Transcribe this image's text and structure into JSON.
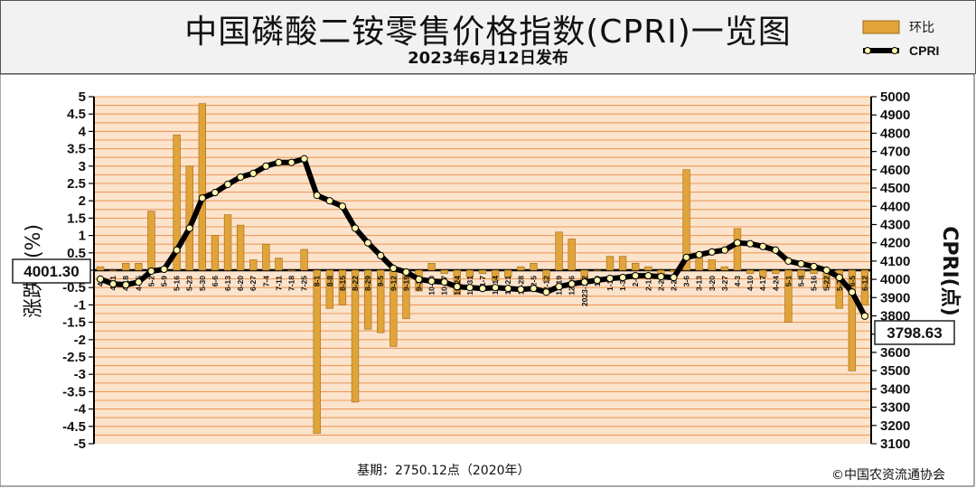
{
  "header": {
    "title": "中国磷酸二铵零售价格指数(CPRI)一览图",
    "subtitle": "2023年6月12日发布"
  },
  "footer": {
    "base": "基期：2750.12点（2020年）",
    "copyright": "©中国农资流通协会"
  },
  "colors": {
    "bar": "#e0a43a",
    "bar_edge": "#a06a1a",
    "band": "#f7cfa9",
    "band_line": "#ef9a58",
    "line": "#000000",
    "marker": "#fff6b0"
  },
  "chart_data": {
    "type": "bar+line",
    "legend": [
      "环比",
      "CPRI"
    ],
    "legend_position": "top-right",
    "ylabel_left": "涨跌幅(%)",
    "ylabel_right": "CPRI(点)",
    "ylim_left": [
      -5,
      5
    ],
    "ylim_right": [
      3100,
      5000
    ],
    "yticks_left": [
      "5",
      "4.5",
      "4",
      "3.5",
      "3",
      "2.5",
      "2",
      "1.5",
      "1",
      "0.5",
      "0",
      "-0.5",
      "-1",
      "-1.5",
      "-2",
      "-2.5",
      "-3",
      "-3.5",
      "-4",
      "-4.5",
      "-5"
    ],
    "yticks_right": [
      "5000",
      "4900",
      "4800",
      "4700",
      "4600",
      "4500",
      "4400",
      "4300",
      "4200",
      "4100",
      "4000",
      "3900",
      "3800",
      "3700",
      "3600",
      "3500",
      "3400",
      "3300",
      "3200",
      "3100"
    ],
    "callout_start": "4001.30",
    "callout_end": "3798.63",
    "year_marker": "2023-1-2",
    "x_labels": [
      "4-4",
      "4-11",
      "4-18",
      "4-25",
      "5-2",
      "5-9",
      "5-16",
      "5-23",
      "5-30",
      "6-6",
      "6-13",
      "6-20",
      "6-27",
      "7-4",
      "7-11",
      "7-18",
      "7-25",
      "8-1",
      "8-8",
      "8-15",
      "8-22",
      "8-29",
      "9-5",
      "9-12",
      "9-19",
      "9-26",
      "10-10",
      "10-17",
      "10-24",
      "10-31",
      "11-7",
      "11-14",
      "11-21",
      "11-28",
      "12-5",
      "12-12",
      "12-19",
      "12-26",
      "1-2",
      "1-9",
      "1-16",
      "1-30",
      "2-6",
      "2-13",
      "2-20",
      "2-27",
      "3-6",
      "3-13",
      "3-20",
      "3-27",
      "4-3",
      "4-10",
      "4-17",
      "4-24",
      "5-1",
      "5-8",
      "5-16",
      "5-22",
      "5-29",
      "6-5",
      "6-12"
    ],
    "x_label_step": 1,
    "x_label_shown": [
      "4-4",
      "4-11",
      "4-18",
      "4-25",
      "5-2",
      "5-9",
      "5-16",
      "5-23",
      "5-30",
      "6-6",
      "6-13",
      "6-20",
      "6-27",
      "7-4",
      "7-11",
      "7-18",
      "7-25",
      "8-1",
      "8-8",
      "8-15",
      "8-22",
      "8-29",
      "9-5",
      "9-12",
      "9-19",
      "9-26",
      "10-10",
      "10-17",
      "10-24",
      "10-31",
      "11-7",
      "11-14",
      "11-21",
      "11-28",
      "12-5",
      "12-12",
      "12-19",
      "12-26",
      "2023-1-2",
      "1-9",
      "1-16",
      "1-30",
      "2-6",
      "2-13",
      "2-20",
      "2-27",
      "3-6",
      "3-13",
      "3-20",
      "3-27",
      "4-3",
      "4-10",
      "4-17",
      "4-24",
      "5-1",
      "5-8",
      "5-16",
      "5-22",
      "5-29",
      "6-5",
      "6-12"
    ],
    "series": [
      {
        "name": "环比",
        "type": "bar",
        "values": [
          0.1,
          0.0,
          0.2,
          0.2,
          1.7,
          0.0,
          3.9,
          3.0,
          4.8,
          1.0,
          1.6,
          1.3,
          0.3,
          0.75,
          0.35,
          0.0,
          0.6,
          -4.7,
          -1.1,
          -1.0,
          -3.8,
          -1.7,
          -1.8,
          -2.2,
          -1.4,
          -0.6,
          0.2,
          -0.1,
          -0.7,
          -0.2,
          -0.1,
          -0.3,
          -0.2,
          0.1,
          0.2,
          -0.3,
          1.1,
          0.9,
          -0.3,
          0.0,
          0.4,
          0.4,
          0.2,
          0.1,
          -0.1,
          -0.05,
          2.9,
          0.4,
          0.3,
          0.1,
          1.2,
          -0.1,
          -0.2,
          -0.1,
          -1.5,
          -0.2,
          -0.1,
          -0.5,
          -1.1,
          -2.9,
          -1.0
        ]
      },
      {
        "name": "CPRI",
        "type": "line",
        "values": [
          4001.3,
          3975,
          3970,
          3985,
          4045,
          4055,
          4160,
          4280,
          4445,
          4475,
          4520,
          4560,
          4580,
          4620,
          4640,
          4640,
          4660,
          4460,
          4430,
          4400,
          4280,
          4200,
          4130,
          4060,
          4040,
          4000,
          3990,
          3985,
          3960,
          3955,
          3950,
          3955,
          3950,
          3945,
          3950,
          3930,
          3960,
          3975,
          3985,
          3995,
          4005,
          4010,
          4020,
          4020,
          4015,
          4010,
          4120,
          4135,
          4150,
          4160,
          4200,
          4195,
          4180,
          4160,
          4100,
          4085,
          4070,
          4050,
          4010,
          3930,
          3798.63
        ]
      }
    ]
  }
}
